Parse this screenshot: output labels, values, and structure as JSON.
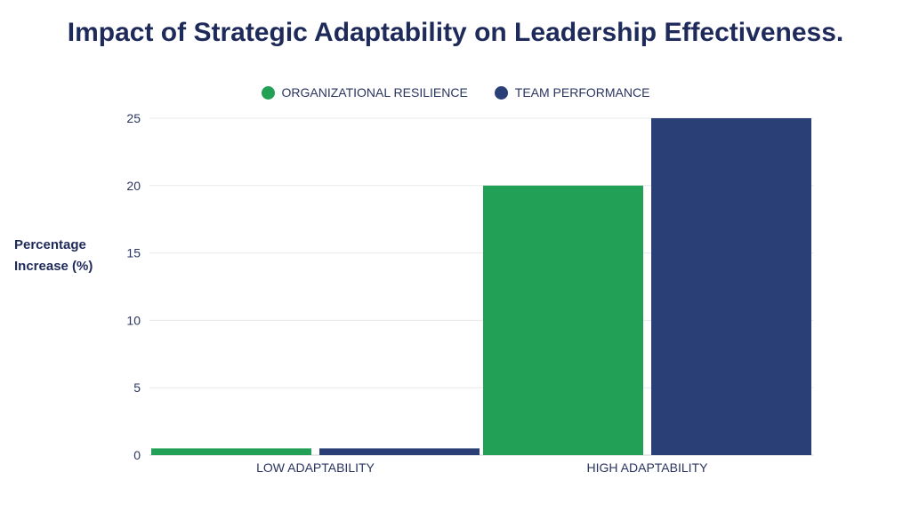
{
  "chart_data": {
    "type": "bar",
    "title": "Impact of Strategic Adaptability on Leadership Effectiveness.",
    "categories": [
      "LOW ADAPTABILITY",
      "HIGH ADAPTABILITY"
    ],
    "series": [
      {
        "name": "ORGANIZATIONAL RESILIENCE",
        "color": "#22a056",
        "values": [
          0.5,
          20
        ]
      },
      {
        "name": "TEAM PERFORMANCE",
        "color": "#2b3f77",
        "values": [
          0.5,
          25
        ]
      }
    ],
    "xlabel": "",
    "ylabel": "Percentage Increase (%)",
    "ylim": [
      0,
      25
    ],
    "yticks": [
      0,
      5,
      10,
      15,
      20,
      25
    ],
    "grid": true,
    "legend": "top-center"
  }
}
